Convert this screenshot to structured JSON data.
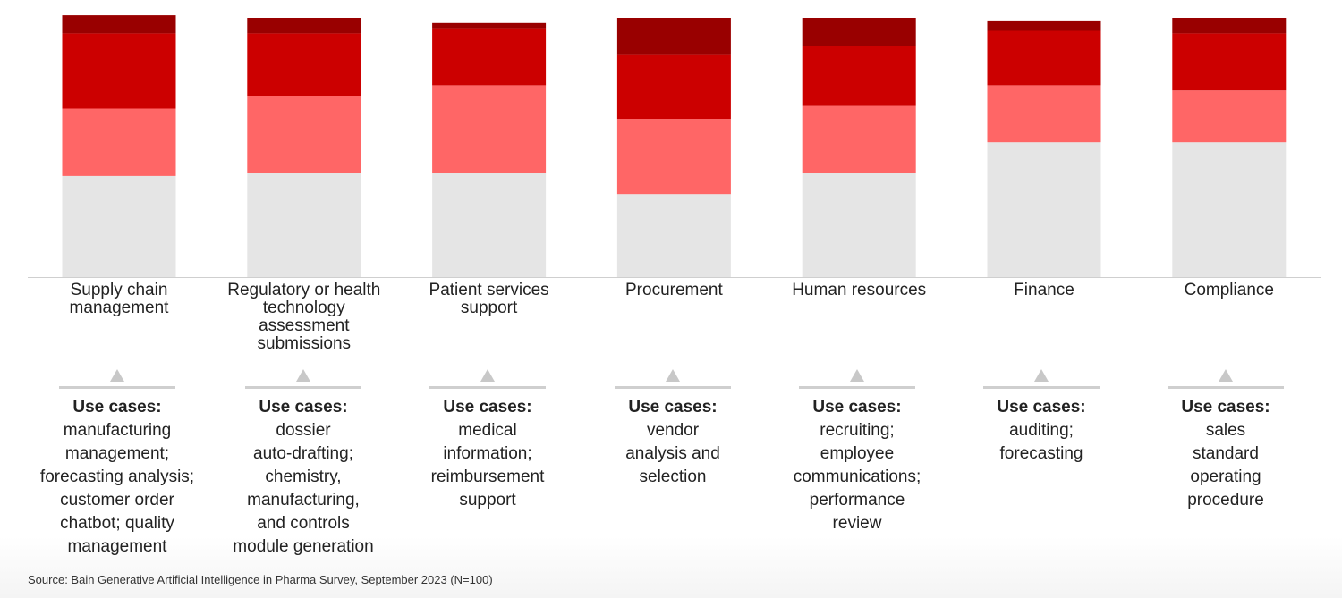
{
  "chart_data": {
    "type": "bar",
    "stacked": true,
    "categories": [
      "Supply chain management",
      "Regulatory or health technology assessment submissions",
      "Patient services support",
      "Procurement",
      "Human resources",
      "Finance",
      "Compliance"
    ],
    "category_lines": [
      [
        "Supply chain",
        "management"
      ],
      [
        "Regulatory or health",
        "technology",
        "assessment",
        "submissions"
      ],
      [
        "Patient services",
        "support"
      ],
      [
        "Procurement"
      ],
      [
        "Human resources"
      ],
      [
        "Finance"
      ],
      [
        "Compliance"
      ]
    ],
    "series": [
      {
        "color": "#e5e5e5",
        "values": [
          39,
          40,
          40,
          32,
          40,
          52,
          52
        ]
      },
      {
        "color": "#ff6666",
        "values": [
          26,
          30,
          34,
          29,
          26,
          22,
          20
        ]
      },
      {
        "color": "#cc0000",
        "values": [
          29,
          24,
          22,
          25,
          23,
          21,
          22
        ]
      },
      {
        "color": "#990000",
        "values": [
          7,
          6,
          2,
          14,
          11,
          4,
          6
        ]
      }
    ],
    "ylim": [
      0,
      100
    ],
    "grid": false,
    "legend": "none"
  },
  "use_cases": {
    "heading": "Use cases:",
    "items": [
      [
        "manufacturing",
        "management;",
        "forecasting analysis;",
        "customer order",
        "chatbot; quality",
        "management"
      ],
      [
        "dossier",
        "auto-drafting;",
        "chemistry,",
        "manufacturing,",
        "and controls",
        "module generation"
      ],
      [
        "medical",
        "information;",
        "reimbursement",
        "support"
      ],
      [
        "vendor",
        "analysis and",
        "selection"
      ],
      [
        "recruiting;",
        "employee",
        "communications;",
        "performance",
        "review"
      ],
      [
        "auditing;",
        "forecasting"
      ],
      [
        "sales",
        "standard",
        "operating",
        "procedure"
      ]
    ]
  },
  "source": "Source: Bain Generative Artificial Intelligence in Pharma Survey, September 2023 (N=100)"
}
